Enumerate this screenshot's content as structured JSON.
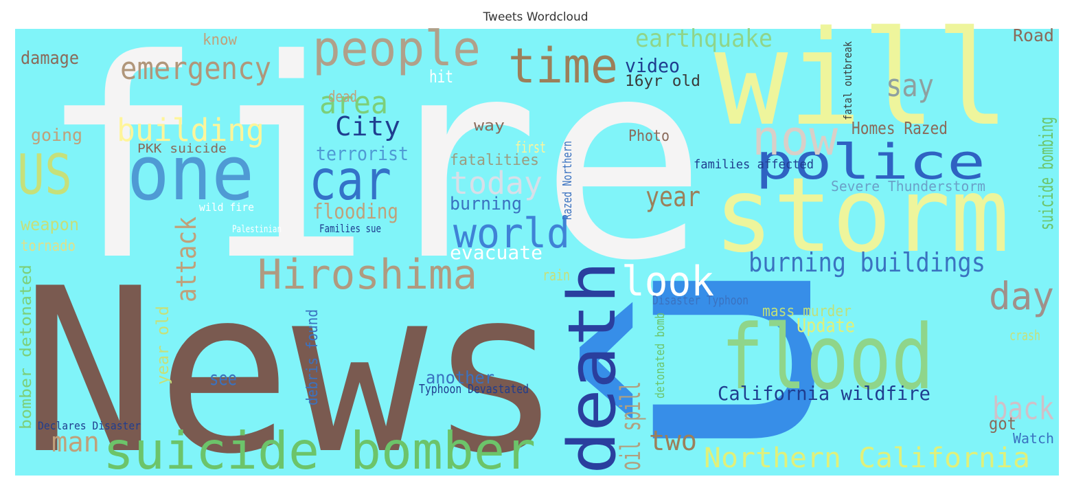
{
  "title": "Tweets Wordcloud",
  "words": [
    {
      "text": "fire",
      "color": "#f5f4f4"
    },
    {
      "text": "News",
      "color": "#7a5a50"
    },
    {
      "text": "will",
      "color": "#eef59c"
    },
    {
      "text": "storm",
      "color": "#eef59c"
    },
    {
      "text": "û",
      "color": "#378ee8"
    },
    {
      "text": "flood",
      "color": "#8fd58a"
    },
    {
      "text": "death",
      "color": "#2a3f9e"
    },
    {
      "text": "suicide bomber",
      "color": "#6cc46a"
    },
    {
      "text": "Hiroshima",
      "color": "#b09a80"
    },
    {
      "text": "people",
      "color": "#b0a08a"
    },
    {
      "text": "time",
      "color": "#9c7f5a"
    },
    {
      "text": "emergency",
      "color": "#b0967a"
    },
    {
      "text": "one",
      "color": "#4f9ad4"
    },
    {
      "text": "US",
      "color": "#c6e07a"
    },
    {
      "text": "car",
      "color": "#3472c8"
    },
    {
      "text": "building",
      "color": "#fff59a"
    },
    {
      "text": "area",
      "color": "#7ccf7a"
    },
    {
      "text": "City",
      "color": "#1f3d8f"
    },
    {
      "text": "world",
      "color": "#3f82d6"
    },
    {
      "text": "today",
      "color": "#d8dfe8"
    },
    {
      "text": "police",
      "color": "#2f62c2"
    },
    {
      "text": "now",
      "color": "#d9cfc8"
    },
    {
      "text": "earthquake",
      "color": "#8fd58a"
    },
    {
      "text": "say",
      "color": "#8ea0a0"
    },
    {
      "text": "look",
      "color": "#ffffff"
    },
    {
      "text": "burning buildings",
      "color": "#3a72c0"
    },
    {
      "text": "day",
      "color": "#a0908a"
    },
    {
      "text": "back",
      "color": "#d0c0c8"
    },
    {
      "text": "California wildfire",
      "color": "#1f3d8f"
    },
    {
      "text": "Northern California",
      "color": "#e0f07a"
    },
    {
      "text": "year",
      "color": "#9c7f5a"
    },
    {
      "text": "attack",
      "color": "#c0a07a"
    },
    {
      "text": "terrorist",
      "color": "#4f9ad4"
    },
    {
      "text": "flooding",
      "color": "#c0a07a"
    },
    {
      "text": "evacuate",
      "color": "#ffffff"
    },
    {
      "text": "Homes Razed",
      "color": "#8a6a5a"
    },
    {
      "text": "Severe Thunderstorm",
      "color": "#6aa0c8"
    },
    {
      "text": "two",
      "color": "#9c7f5a"
    },
    {
      "text": "oil spill",
      "color": "#b0a080"
    },
    {
      "text": "man",
      "color": "#c0a07a"
    },
    {
      "text": "see",
      "color": "#3a72c0"
    },
    {
      "text": "another",
      "color": "#3a72c0"
    },
    {
      "text": "video",
      "color": "#1f3d8f"
    },
    {
      "text": "16yr old",
      "color": "#3a3a3a"
    },
    {
      "text": "damage",
      "color": "#8a6a5a"
    },
    {
      "text": "going",
      "color": "#c0a07a"
    },
    {
      "text": "weapon",
      "color": "#c6e07a"
    },
    {
      "text": "tornado",
      "color": "#e0e08a"
    },
    {
      "text": "Road",
      "color": "#8a6a5a"
    },
    {
      "text": "Update",
      "color": "#e0f07a"
    },
    {
      "text": "mass murder",
      "color": "#c0e07a"
    },
    {
      "text": "suicide bombing",
      "color": "#6cc46a"
    },
    {
      "text": "Declares Disaster",
      "color": "#1f3d8f"
    },
    {
      "text": "bomber detonated",
      "color": "#7ccf7a"
    },
    {
      "text": "dead",
      "color": "#c0a07a"
    },
    {
      "text": "Photo",
      "color": "#8a6a5a"
    },
    {
      "text": "know",
      "color": "#c0a07a"
    },
    {
      "text": "crash",
      "color": "#c6e07a"
    },
    {
      "text": "rain",
      "color": "#c6e07a"
    },
    {
      "text": "got",
      "color": "#8a6a5a"
    },
    {
      "text": "Watch",
      "color": "#3a72c0"
    },
    {
      "text": "hit",
      "color": "#ffffff"
    },
    {
      "text": "way",
      "color": "#8a6a5a"
    },
    {
      "text": "fatalities",
      "color": "#9c9c80"
    },
    {
      "text": "burning",
      "color": "#3a72c0"
    },
    {
      "text": "families affected",
      "color": "#1f3d8f"
    },
    {
      "text": "Typhoon Devastated",
      "color": "#1f3d8f"
    },
    {
      "text": "debris found",
      "color": "#3a72c0"
    },
    {
      "text": "year old",
      "color": "#c6e07a"
    },
    {
      "text": "Palestinian",
      "color": "#ffffff"
    },
    {
      "text": "wild fire",
      "color": "#ffffff"
    },
    {
      "text": "Families sue",
      "color": "#1f3d8f"
    },
    {
      "text": "PKK suicide",
      "color": "#8a6a5a"
    },
    {
      "text": "Razed Northern",
      "color": "#3a72c0"
    },
    {
      "text": "Disaster Typhoon",
      "color": "#3a72c0"
    },
    {
      "text": "first",
      "color": "#fff59a"
    },
    {
      "text": "detonated bomb",
      "color": "#6cc46a"
    },
    {
      "text": "fatal outbreak",
      "color": "#3a3a3a"
    }
  ]
}
